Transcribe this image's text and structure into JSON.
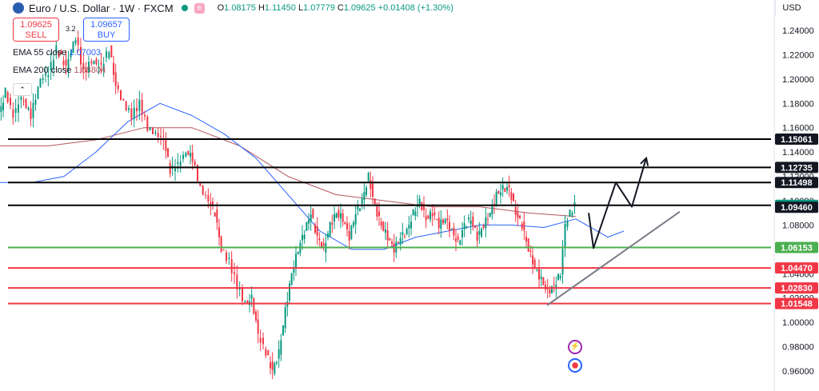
{
  "header": {
    "symbol": "Euro / U.S. Dollar · 1W · FXCM",
    "pill": "≡",
    "open_label": "O",
    "open": "1.08175",
    "high_label": "H",
    "high": "1.11450",
    "low_label": "L",
    "low": "1.07779",
    "close_label": "C",
    "close": "1.09625",
    "change": "+0.01408 (+1.30%)"
  },
  "trade": {
    "sell_price": "1.09625",
    "sell_label": "SELL",
    "spread": "3.2",
    "buy_price": "1.09657",
    "buy_label": "BUY"
  },
  "indicators": [
    {
      "label": "EMA 55 close",
      "value": "1.07003",
      "color": "#2962ff"
    },
    {
      "label": "EMA 200 close",
      "value": "1.08804",
      "color": "#b2575e"
    }
  ],
  "collapse_glyph": "⌃",
  "currency": "USD",
  "colors": {
    "up": "#089981",
    "down": "#f23645",
    "ema55": "#2962ff",
    "ema200": "#b2575e",
    "support_green": "#4caf50",
    "support_red": "#f23645",
    "resistance": "#000000",
    "trend": "#787b86"
  },
  "chart_data": {
    "type": "candlestick",
    "title": "Euro / U.S. Dollar · 1W · FXCM",
    "y_ticks": [
      "1.24000",
      "1.22000",
      "1.20000",
      "1.18000",
      "1.16000",
      "1.14000",
      "1.12000",
      "1.10000",
      "1.08000",
      "1.06000",
      "1.04000",
      "1.02000",
      "1.00000",
      "0.98000",
      "0.96000"
    ],
    "ylim": [
      0.95,
      1.255
    ],
    "horizontal_levels": [
      {
        "label": "1.15061",
        "value": 1.15061,
        "color": "#000000",
        "label_bg": "#131722"
      },
      {
        "label": "1.12735",
        "value": 1.12735,
        "color": "#000000",
        "label_bg": "#131722"
      },
      {
        "label": "1.11498",
        "value": 1.11498,
        "color": "#000000",
        "label_bg": "#131722"
      },
      {
        "label": "1.09625",
        "value": 1.09625,
        "color": "#000000",
        "label_bg": "#089981"
      },
      {
        "label": "1.09460",
        "value": 1.0946,
        "color": "#000000",
        "label_bg": "#131722",
        "no_line": true
      },
      {
        "label": "1.06153",
        "value": 1.06153,
        "color": "#4caf50",
        "label_bg": "#4caf50"
      },
      {
        "label": "1.04470",
        "value": 1.0447,
        "color": "#f23645",
        "label_bg": "#f23645"
      },
      {
        "label": "1.02830",
        "value": 1.0283,
        "color": "#f23645",
        "label_bg": "#f23645"
      },
      {
        "label": "1.01548",
        "value": 1.01548,
        "color": "#f23645",
        "label_bg": "#f23645"
      }
    ],
    "price_path": [
      [
        0,
        1.17
      ],
      [
        8,
        1.19
      ],
      [
        18,
        1.17
      ],
      [
        28,
        1.185
      ],
      [
        40,
        1.17
      ],
      [
        52,
        1.2
      ],
      [
        62,
        1.205
      ],
      [
        72,
        1.225
      ],
      [
        84,
        1.21
      ],
      [
        96,
        1.235
      ],
      [
        106,
        1.205
      ],
      [
        116,
        1.215
      ],
      [
        128,
        1.21
      ],
      [
        138,
        1.225
      ],
      [
        146,
        1.195
      ],
      [
        156,
        1.18
      ],
      [
        166,
        1.17
      ],
      [
        176,
        1.18
      ],
      [
        186,
        1.16
      ],
      [
        196,
        1.155
      ],
      [
        206,
        1.15
      ],
      [
        214,
        1.125
      ],
      [
        224,
        1.13
      ],
      [
        234,
        1.14
      ],
      [
        242,
        1.135
      ],
      [
        252,
        1.11
      ],
      [
        262,
        1.1
      ],
      [
        270,
        1.09
      ],
      [
        278,
        1.06
      ],
      [
        288,
        1.05
      ],
      [
        298,
        1.03
      ],
      [
        308,
        1.015
      ],
      [
        316,
        1.02
      ],
      [
        324,
        0.99
      ],
      [
        334,
        0.975
      ],
      [
        342,
        0.96
      ],
      [
        350,
        0.975
      ],
      [
        358,
        1.01
      ],
      [
        366,
        1.04
      ],
      [
        374,
        1.06
      ],
      [
        382,
        1.075
      ],
      [
        390,
        1.09
      ],
      [
        398,
        1.07
      ],
      [
        406,
        1.06
      ],
      [
        414,
        1.08
      ],
      [
        422,
        1.09
      ],
      [
        430,
        1.085
      ],
      [
        438,
        1.07
      ],
      [
        446,
        1.09
      ],
      [
        454,
        1.1
      ],
      [
        462,
        1.12
      ],
      [
        470,
        1.095
      ],
      [
        478,
        1.08
      ],
      [
        486,
        1.07
      ],
      [
        494,
        1.06
      ],
      [
        502,
        1.07
      ],
      [
        510,
        1.075
      ],
      [
        518,
        1.09
      ],
      [
        526,
        1.1
      ],
      [
        534,
        1.085
      ],
      [
        542,
        1.09
      ],
      [
        550,
        1.08
      ],
      [
        558,
        1.085
      ],
      [
        566,
        1.075
      ],
      [
        574,
        1.065
      ],
      [
        582,
        1.08
      ],
      [
        590,
        1.085
      ],
      [
        598,
        1.07
      ],
      [
        606,
        1.08
      ],
      [
        614,
        1.09
      ],
      [
        622,
        1.105
      ],
      [
        630,
        1.11
      ],
      [
        638,
        1.11
      ],
      [
        646,
        1.09
      ],
      [
        654,
        1.08
      ],
      [
        662,
        1.06
      ],
      [
        670,
        1.045
      ],
      [
        678,
        1.035
      ],
      [
        686,
        1.025
      ],
      [
        694,
        1.03
      ],
      [
        702,
        1.04
      ],
      [
        708,
        1.08
      ],
      [
        714,
        1.09
      ],
      [
        720,
        1.096
      ]
    ],
    "ema55": [
      [
        0,
        1.115
      ],
      [
        40,
        1.115
      ],
      [
        80,
        1.12
      ],
      [
        120,
        1.14
      ],
      [
        160,
        1.165
      ],
      [
        200,
        1.18
      ],
      [
        240,
        1.17
      ],
      [
        280,
        1.155
      ],
      [
        320,
        1.135
      ],
      [
        360,
        1.105
      ],
      [
        400,
        1.075
      ],
      [
        440,
        1.06
      ],
      [
        480,
        1.06
      ],
      [
        520,
        1.07
      ],
      [
        560,
        1.075
      ],
      [
        600,
        1.08
      ],
      [
        640,
        1.08
      ],
      [
        680,
        1.078
      ],
      [
        720,
        1.085
      ],
      [
        760,
        1.07
      ],
      [
        780,
        1.075
      ]
    ],
    "ema200": [
      [
        0,
        1.145
      ],
      [
        60,
        1.145
      ],
      [
        120,
        1.15
      ],
      [
        180,
        1.16
      ],
      [
        240,
        1.16
      ],
      [
        300,
        1.145
      ],
      [
        360,
        1.12
      ],
      [
        420,
        1.105
      ],
      [
        480,
        1.1
      ],
      [
        540,
        1.095
      ],
      [
        600,
        1.095
      ],
      [
        660,
        1.09
      ],
      [
        720,
        1.087
      ]
    ],
    "trend_line": [
      [
        684,
        1.014
      ],
      [
        850,
        1.091
      ]
    ],
    "projection_path": [
      [
        736,
        1.09
      ],
      [
        742,
        1.061
      ],
      [
        770,
        1.115
      ],
      [
        790,
        1.095
      ],
      [
        808,
        1.135
      ]
    ]
  }
}
